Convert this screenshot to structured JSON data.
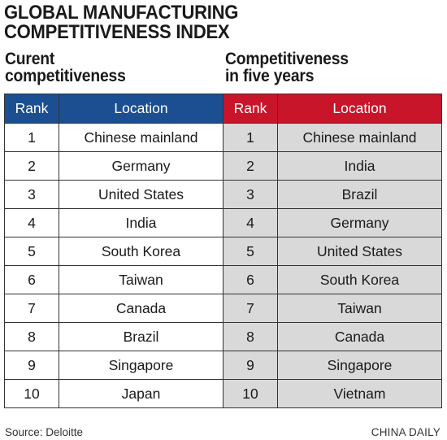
{
  "title_line1": "GLOBAL MANUFACTURING",
  "title_line2": "COMPETITIVENESS INDEX",
  "left": {
    "heading_line1": "Curent",
    "heading_line2": "competitiveness",
    "header_color": "#1c4f91",
    "columns": [
      "Rank",
      "Location"
    ],
    "rows": [
      [
        "1",
        "Chinese mainland"
      ],
      [
        "2",
        "Germany"
      ],
      [
        "3",
        "United States"
      ],
      [
        "4",
        "India"
      ],
      [
        "5",
        "South Korea"
      ],
      [
        "6",
        "Taiwan"
      ],
      [
        "7",
        "Canada"
      ],
      [
        "8",
        "Brazil"
      ],
      [
        "9",
        "Singapore"
      ],
      [
        "10",
        "Japan"
      ]
    ]
  },
  "right": {
    "heading_line1": "Competitiveness",
    "heading_line2": "in five years",
    "header_color": "#c8152a",
    "columns": [
      "Rank",
      "Location"
    ],
    "rows": [
      [
        "1",
        "Chinese mainland"
      ],
      [
        "2",
        "India"
      ],
      [
        "3",
        "Brazil"
      ],
      [
        "4",
        "Germany"
      ],
      [
        "5",
        "United States"
      ],
      [
        "6",
        "South Korea"
      ],
      [
        "7",
        "Taiwan"
      ],
      [
        "8",
        "Canada"
      ],
      [
        "9",
        "Singapore"
      ],
      [
        "10",
        "Vietnam"
      ]
    ]
  },
  "source": "Source: Deloitte",
  "credit": "CHINA DAILY"
}
